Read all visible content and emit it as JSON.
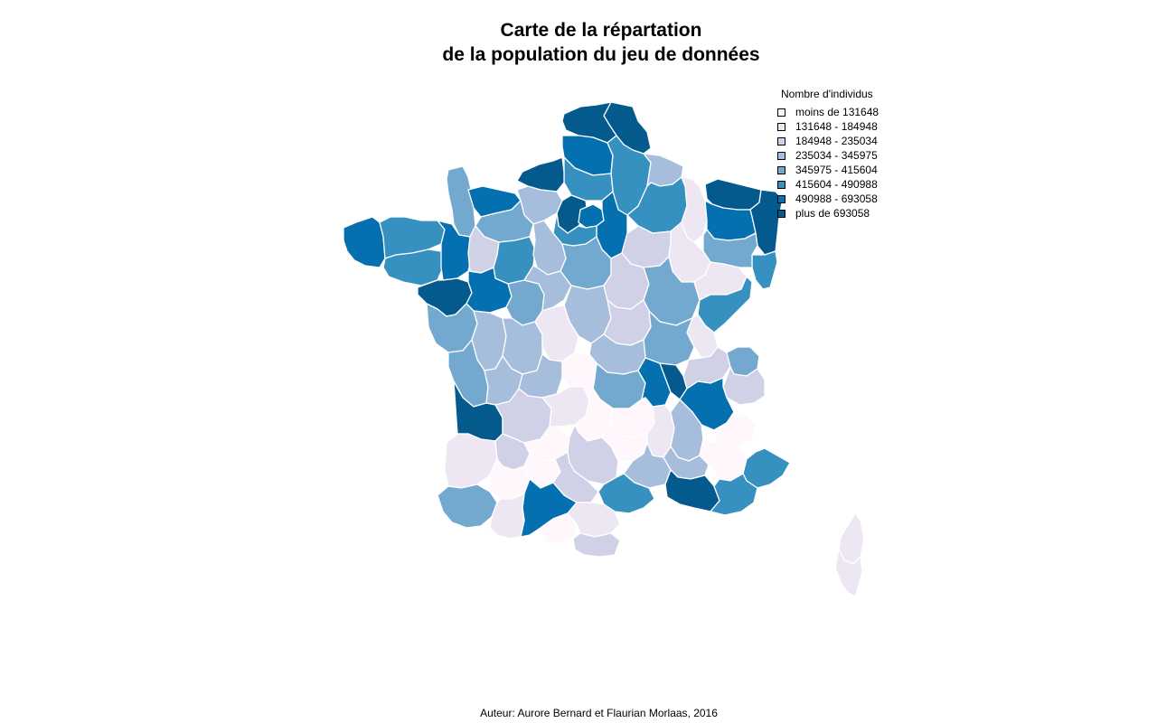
{
  "title": {
    "line1": "Carte de la répartation",
    "line2": "de la population du jeu de données"
  },
  "legend": {
    "title": "Nombre d'individus",
    "items": [
      {
        "label": "moins de 131648",
        "color": "#fff7fb"
      },
      {
        "label": "131648 - 184948",
        "color": "#ece7f2"
      },
      {
        "label": "184948 - 235034",
        "color": "#d0d1e6"
      },
      {
        "label": "235034 - 345975",
        "color": "#a6bddb"
      },
      {
        "label": "345975 - 415604",
        "color": "#74a9cf"
      },
      {
        "label": "415604 - 490988",
        "color": "#3690c0"
      },
      {
        "label": "490988 - 693058",
        "color": "#0570b0"
      },
      {
        "label": "plus de 693058",
        "color": "#045a8d"
      }
    ]
  },
  "footer": "Auteur: Aurore Bernard et Flaurian Morlaas, 2016",
  "regions": [
    {
      "name": "nord",
      "cls": 7
    },
    {
      "name": "pas-de-calais",
      "cls": 7
    },
    {
      "name": "somme",
      "cls": 6
    },
    {
      "name": "aisne",
      "cls": 5
    },
    {
      "name": "oise",
      "cls": 5
    },
    {
      "name": "seine-maritime",
      "cls": 7
    },
    {
      "name": "manche",
      "cls": 4
    },
    {
      "name": "calvados",
      "cls": 6
    },
    {
      "name": "eure",
      "cls": 3
    },
    {
      "name": "val-d-oise",
      "cls": 7
    },
    {
      "name": "paris-petite-couronne",
      "cls": 6
    },
    {
      "name": "seine-et-marne",
      "cls": 6
    },
    {
      "name": "yvelines",
      "cls": 5
    },
    {
      "name": "ardennes",
      "cls": 3
    },
    {
      "name": "marne",
      "cls": 5
    },
    {
      "name": "meuse",
      "cls": 1
    },
    {
      "name": "moselle",
      "cls": 7
    },
    {
      "name": "bas-rhin",
      "cls": 7
    },
    {
      "name": "haut-rhin",
      "cls": 5
    },
    {
      "name": "meurthe-et-moselle",
      "cls": 6
    },
    {
      "name": "vosges",
      "cls": 4
    },
    {
      "name": "haute-marne",
      "cls": 1
    },
    {
      "name": "aube",
      "cls": 2
    },
    {
      "name": "finistere",
      "cls": 6
    },
    {
      "name": "cotes-d-armor",
      "cls": 5
    },
    {
      "name": "morbihan",
      "cls": 5
    },
    {
      "name": "ille-et-vilaine",
      "cls": 6
    },
    {
      "name": "orne",
      "cls": 4
    },
    {
      "name": "mayenne",
      "cls": 2
    },
    {
      "name": "sarthe",
      "cls": 5
    },
    {
      "name": "eure-et-loir",
      "cls": 3
    },
    {
      "name": "loiret",
      "cls": 4
    },
    {
      "name": "loire-atlantique",
      "cls": 7
    },
    {
      "name": "maine-et-loire",
      "cls": 6
    },
    {
      "name": "indre-et-loire",
      "cls": 4
    },
    {
      "name": "loir-et-cher",
      "cls": 3
    },
    {
      "name": "cher",
      "cls": 3
    },
    {
      "name": "yonne",
      "cls": 2
    },
    {
      "name": "cote-d-or",
      "cls": 4
    },
    {
      "name": "haute-saone",
      "cls": 1
    },
    {
      "name": "doubs",
      "cls": 5
    },
    {
      "name": "jura",
      "cls": 1
    },
    {
      "name": "nievre",
      "cls": 2
    },
    {
      "name": "saone-et-loire",
      "cls": 4
    },
    {
      "name": "vendee",
      "cls": 4
    },
    {
      "name": "deux-sevres",
      "cls": 3
    },
    {
      "name": "vienne",
      "cls": 3
    },
    {
      "name": "indre",
      "cls": 1
    },
    {
      "name": "allier",
      "cls": 3
    },
    {
      "name": "charente-maritime",
      "cls": 4
    },
    {
      "name": "charente",
      "cls": 3
    },
    {
      "name": "haute-vienne",
      "cls": 3
    },
    {
      "name": "creuse",
      "cls": 0
    },
    {
      "name": "puy-de-dome",
      "cls": 4
    },
    {
      "name": "loire",
      "cls": 6
    },
    {
      "name": "rhone",
      "cls": 7
    },
    {
      "name": "ain",
      "cls": 2
    },
    {
      "name": "haute-savoie",
      "cls": 4
    },
    {
      "name": "savoie",
      "cls": 2
    },
    {
      "name": "isere",
      "cls": 6
    },
    {
      "name": "gironde",
      "cls": 7
    },
    {
      "name": "dordogne",
      "cls": 2
    },
    {
      "name": "correze",
      "cls": 1
    },
    {
      "name": "cantal",
      "cls": 0
    },
    {
      "name": "haute-loire",
      "cls": 0
    },
    {
      "name": "ardeche",
      "cls": 1
    },
    {
      "name": "drome",
      "cls": 3
    },
    {
      "name": "hautes-alpes",
      "cls": 0
    },
    {
      "name": "landes",
      "cls": 1
    },
    {
      "name": "lot-et-garonne",
      "cls": 2
    },
    {
      "name": "lot",
      "cls": 0
    },
    {
      "name": "aveyron",
      "cls": 2
    },
    {
      "name": "lozere",
      "cls": 0
    },
    {
      "name": "gard",
      "cls": 3
    },
    {
      "name": "vaucluse",
      "cls": 3
    },
    {
      "name": "alpes-de-haute-provence",
      "cls": 0
    },
    {
      "name": "alpes-maritimes",
      "cls": 5
    },
    {
      "name": "pyrenees-atlantiques",
      "cls": 4
    },
    {
      "name": "gers",
      "cls": 0
    },
    {
      "name": "tarn-et-garonne",
      "cls": 0
    },
    {
      "name": "tarn",
      "cls": 2
    },
    {
      "name": "haute-garonne",
      "cls": 6
    },
    {
      "name": "herault",
      "cls": 5
    },
    {
      "name": "hautes-pyrenees",
      "cls": 1
    },
    {
      "name": "ariege",
      "cls": 0
    },
    {
      "name": "aude",
      "cls": 1
    },
    {
      "name": "pyrenees-orientales",
      "cls": 2
    },
    {
      "name": "bouches-du-rhone",
      "cls": 7
    },
    {
      "name": "var",
      "cls": 5
    },
    {
      "name": "haute-corse",
      "cls": 1
    },
    {
      "name": "corse-du-sud",
      "cls": 1
    }
  ]
}
